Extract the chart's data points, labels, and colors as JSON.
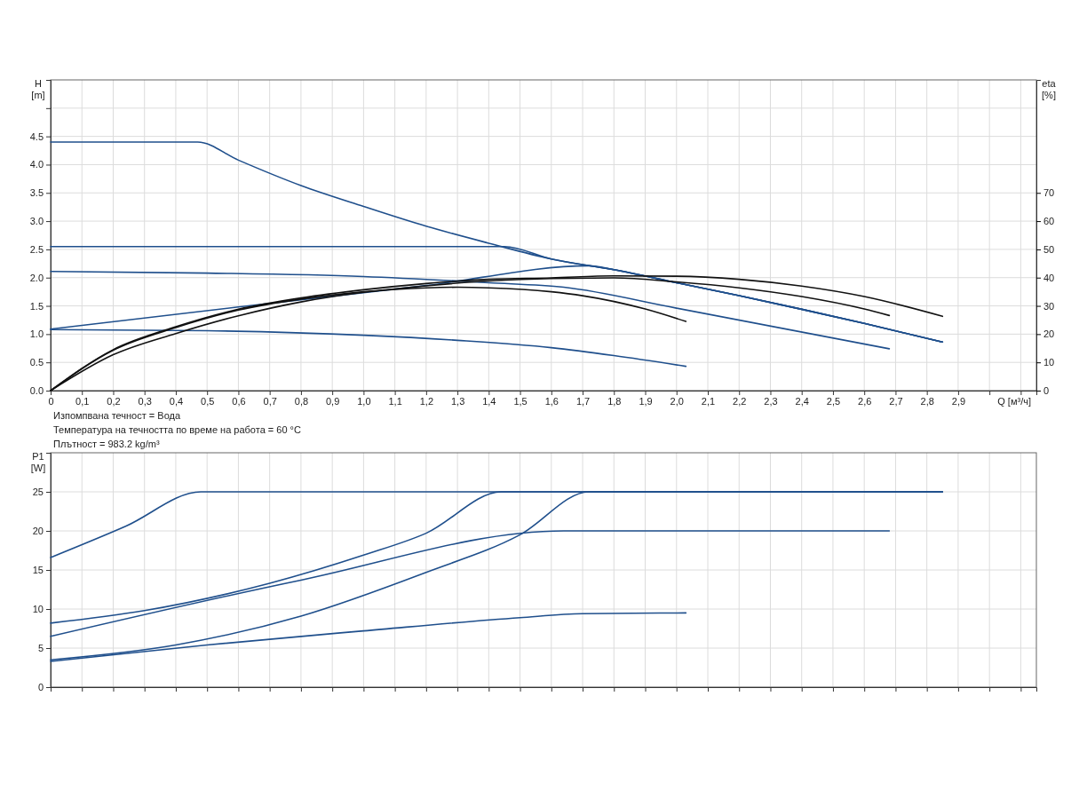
{
  "chart_data": [
    {
      "type": "line",
      "xlabel": "Q [м³/ч]",
      "ylabel": "H [m]",
      "y2label": "eta [%]",
      "grid": true,
      "xlim": [
        0,
        3.15
      ],
      "xticks": [
        0,
        {
          "value": 0.1,
          "label": "0,1"
        },
        {
          "value": 0.2,
          "label": "0,2"
        },
        {
          "value": 0.3,
          "label": "0,3"
        },
        {
          "value": 0.4,
          "label": "0,4"
        },
        {
          "value": 0.5,
          "label": "0,5"
        },
        {
          "value": 0.6,
          "label": "0,6"
        },
        {
          "value": 0.7,
          "label": "0,7"
        },
        {
          "value": 0.8,
          "label": "0,8"
        },
        {
          "value": 0.9,
          "label": "0,9"
        },
        {
          "value": 1.0,
          "label": "1,0"
        },
        {
          "value": 1.1,
          "label": "1,1"
        },
        {
          "value": 1.2,
          "label": "1,2"
        },
        {
          "value": 1.3,
          "label": "1,3"
        },
        {
          "value": 1.4,
          "label": "1,4"
        },
        {
          "value": 1.5,
          "label": "1,5"
        },
        {
          "value": 1.6,
          "label": "1,6"
        },
        {
          "value": 1.7,
          "label": "1,7"
        },
        {
          "value": 1.8,
          "label": "1,8"
        },
        {
          "value": 1.9,
          "label": "1,9"
        },
        {
          "value": 2.0,
          "label": "2,0"
        },
        {
          "value": 2.1,
          "label": "2,1"
        },
        {
          "value": 2.2,
          "label": "2,2"
        },
        {
          "value": 2.3,
          "label": "2,3"
        },
        {
          "value": 2.4,
          "label": "2,4"
        },
        {
          "value": 2.5,
          "label": "2,5"
        },
        {
          "value": 2.6,
          "label": "2,6"
        },
        {
          "value": 2.7,
          "label": "2,7"
        },
        {
          "value": 2.8,
          "label": "2,8"
        },
        {
          "value": 2.9,
          "label": "2,9"
        },
        {
          "value": 3.0,
          "label": null
        },
        {
          "value": 3.1,
          "label": null
        }
      ],
      "ylim": [
        0,
        5.5
      ],
      "yticks": [
        {
          "value": 0,
          "label": "0.0"
        },
        0.5,
        {
          "value": 1,
          "label": "1.0"
        },
        1.5,
        {
          "value": 2,
          "label": "2.0"
        },
        2.5,
        {
          "value": 3,
          "label": "3.0"
        },
        3.5,
        {
          "value": 4,
          "label": "4.0"
        },
        4.5,
        {
          "value": 5,
          "label": null
        }
      ],
      "y2lim": [
        0,
        110
      ],
      "y2ticks": [
        0,
        10,
        20,
        30,
        40,
        50,
        60,
        70
      ],
      "series": [
        {
          "color": "#1f4f8c",
          "x": [
            0,
            0.47,
            0.6,
            0.8,
            1.0,
            1.2,
            1.4,
            1.6,
            1.8,
            2.0,
            2.2,
            2.4,
            2.6,
            2.85
          ],
          "values": [
            4.4,
            4.4,
            4.08,
            3.63,
            3.26,
            2.91,
            2.61,
            2.33,
            2.14,
            1.91,
            1.68,
            1.44,
            1.19,
            0.86
          ]
        },
        {
          "color": "#1f4f8c",
          "x": [
            0,
            1.45,
            1.6,
            1.8,
            2.0,
            2.2,
            2.4,
            2.6,
            2.85
          ],
          "values": [
            2.55,
            2.55,
            2.33,
            2.14,
            1.91,
            1.68,
            1.44,
            1.19,
            0.86
          ]
        },
        {
          "color": "#1f4f8c",
          "x": [
            0,
            0.5,
            1.0,
            1.4,
            1.64,
            2.0,
            2.68
          ],
          "values": [
            2.11,
            2.08,
            2.02,
            1.91,
            1.83,
            1.46,
            0.74
          ]
        },
        {
          "color": "#1f4f8c",
          "x": [
            0,
            0.6,
            1.2,
            1.72,
            1.8,
            2.0,
            2.2,
            2.4,
            2.6,
            2.85
          ],
          "values": [
            1.09,
            1.48,
            1.86,
            2.21,
            2.14,
            1.91,
            1.68,
            1.44,
            1.19,
            0.86
          ]
        },
        {
          "color": "#1f4f8c",
          "x": [
            0,
            0.5,
            1.0,
            1.3,
            1.6,
            1.8,
            2.03
          ],
          "values": [
            1.08,
            1.06,
            0.98,
            0.89,
            0.76,
            0.62,
            0.43
          ]
        },
        {
          "color": "#111111",
          "axis": "y2",
          "x": [
            0,
            0.2,
            0.4,
            0.6,
            0.8,
            1.0,
            1.2,
            1.4,
            1.6,
            1.8,
            2.0,
            2.2,
            2.4,
            2.6,
            2.85
          ],
          "values": [
            0,
            14.5,
            22.6,
            28.8,
            32.8,
            35.7,
            37.9,
            39.4,
            39.9,
            40.6,
            40.5,
            39.4,
            37,
            33.3,
            26.3
          ]
        },
        {
          "color": "#111111",
          "axis": "y2",
          "x": [
            0,
            0.2,
            0.4,
            0.6,
            0.8,
            1.0,
            1.2,
            1.4,
            1.6,
            1.8,
            2.0,
            2.2,
            2.4,
            2.6,
            2.68
          ],
          "values": [
            0,
            12.7,
            20.2,
            26.5,
            31.4,
            34.8,
            37.1,
            38.8,
            39.7,
            39.9,
            38.5,
            36.4,
            33.3,
            28.9,
            26.6
          ]
        },
        {
          "color": "#111111",
          "axis": "y2",
          "x": [
            0,
            0.2,
            0.4,
            0.6,
            0.8,
            1.0,
            1.2,
            1.3,
            1.4,
            1.6,
            1.7,
            1.9,
            2.03
          ],
          "values": [
            0,
            14.3,
            22.3,
            28.5,
            32.4,
            35,
            36.4,
            36.6,
            36.4,
            35,
            33.6,
            28.9,
            24.5
          ]
        }
      ],
      "annotations": [
        "Изпомпвана течност = Вода",
        "Температура на течността по време на работа = 60 °C",
        "Плътност = 983.2 kg/m³"
      ]
    },
    {
      "type": "line",
      "ylabel": "P1 [W]",
      "grid": true,
      "tick_labels": "y",
      "xlim": [
        0,
        3.15
      ],
      "xticks": [
        0,
        0.1,
        0.2,
        0.3,
        0.4,
        0.5,
        0.6,
        0.7,
        0.8,
        0.9,
        1.0,
        1.1,
        1.2,
        1.3,
        1.4,
        1.5,
        1.6,
        1.7,
        1.8,
        1.9,
        2.0,
        2.1,
        2.2,
        2.3,
        2.4,
        2.5,
        2.6,
        2.7,
        2.8,
        2.9,
        3.0,
        3.1
      ],
      "ylim": [
        0,
        30
      ],
      "yticks": [
        0,
        5,
        10,
        15,
        20,
        25
      ],
      "series": [
        {
          "color": "#1f4f8c",
          "x": [
            0,
            0.24,
            0.48,
            2.85
          ],
          "values": [
            16.6,
            20.6,
            25,
            25
          ]
        },
        {
          "color": "#1f4f8c",
          "x": [
            0,
            0.3,
            0.7,
            1.0,
            1.2,
            1.44,
            2.85
          ],
          "values": [
            8.2,
            9.8,
            13.3,
            16.9,
            19.7,
            25,
            25
          ]
        },
        {
          "color": "#1f4f8c",
          "x": [
            0,
            0.8,
            1.64,
            2.68
          ],
          "values": [
            6.5,
            13.7,
            20,
            20
          ]
        },
        {
          "color": "#1f4f8c",
          "x": [
            0,
            0.4,
            0.8,
            1.2,
            1.5,
            1.72,
            2.85
          ],
          "values": [
            3.5,
            5.4,
            9.1,
            14.7,
            19.5,
            25,
            25
          ]
        },
        {
          "color": "#1f4f8c",
          "x": [
            0,
            0.5,
            1.0,
            1.5,
            1.7,
            2.03
          ],
          "values": [
            3.3,
            5.4,
            7.2,
            8.9,
            9.4,
            9.5
          ]
        }
      ]
    }
  ]
}
